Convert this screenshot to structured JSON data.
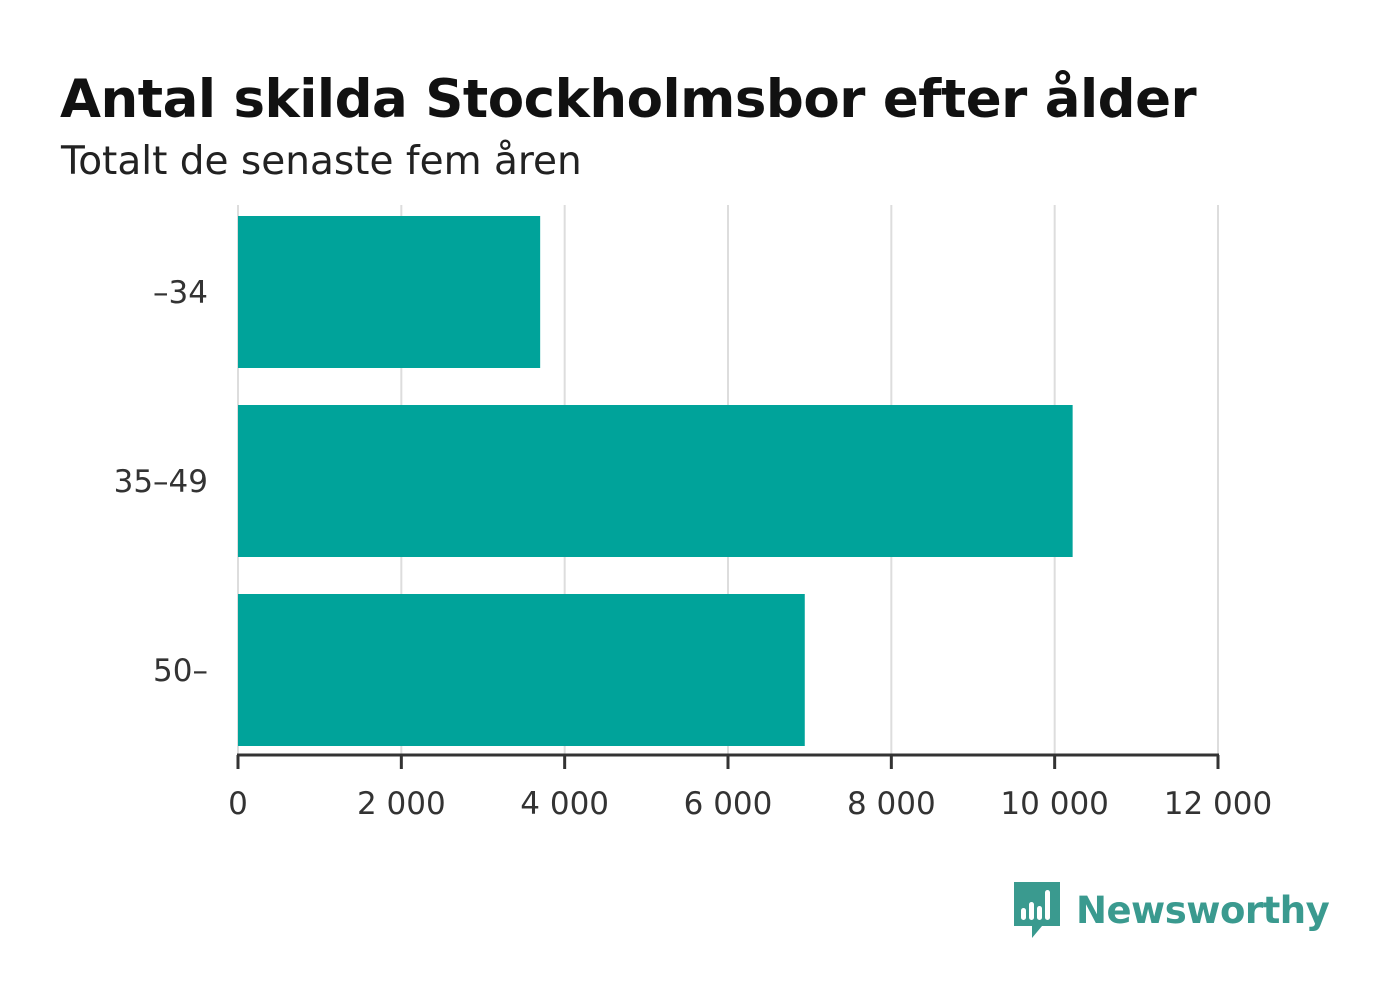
{
  "header": {
    "title": "Antal skilda Stockholmsbor efter ålder",
    "subtitle": "Totalt de senaste fem åren"
  },
  "brand": {
    "name": "Newsworthy",
    "color": "#3a9a8f",
    "icon": "newsworthy-logo-icon"
  },
  "colors": {
    "bar": "#00a39a",
    "grid": "#dddddd",
    "axis": "#333333",
    "tick_text": "#333333"
  },
  "chart_data": {
    "type": "bar",
    "orientation": "horizontal",
    "categories": [
      "–34",
      "35–49",
      "50–"
    ],
    "values": [
      3700,
      10220,
      6940
    ],
    "xlim": [
      0,
      12000
    ],
    "x_ticks": [
      0,
      2000,
      4000,
      6000,
      8000,
      10000,
      12000
    ],
    "x_tick_labels": [
      "0",
      "2 000",
      "4 000",
      "6 000",
      "8 000",
      "10 000",
      "12 000"
    ],
    "title": "Antal skilda Stockholmsbor efter ålder",
    "subtitle": "Totalt de senaste fem åren",
    "xlabel": "",
    "ylabel": "",
    "grid": "vertical",
    "legend": "none"
  }
}
